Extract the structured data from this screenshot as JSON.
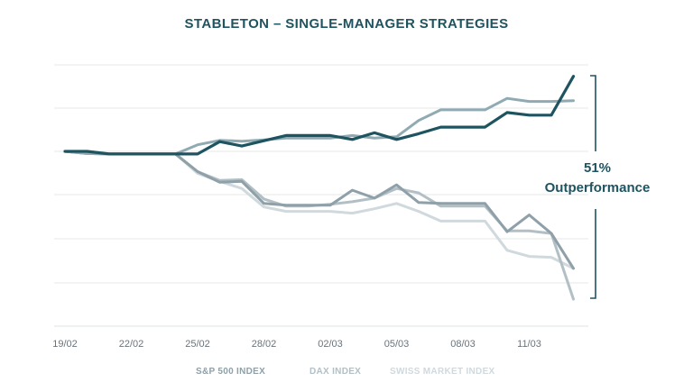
{
  "chart_data": {
    "type": "line",
    "title": "STABLETON – SINGLE-MANAGER STRATEGIES",
    "xlabel": "",
    "ylabel": "",
    "x_tick_labels": [
      "19/02",
      "22/02",
      "25/02",
      "28/02",
      "02/03",
      "05/03",
      "08/03",
      "11/03"
    ],
    "x": [
      0,
      1,
      2,
      3,
      4,
      5,
      6,
      7,
      8,
      9,
      10,
      11,
      12,
      13,
      14,
      15,
      16,
      17,
      18,
      19,
      20,
      21,
      22,
      23
    ],
    "grid": true,
    "annotation": "51%\nOutperformance",
    "legend_position": "bottom",
    "series": [
      {
        "name": "STABLETON",
        "color": "#1e5360",
        "values": [
          0,
          0,
          -0.6,
          -0.6,
          -0.6,
          -0.6,
          -0.6,
          2.2,
          1.2,
          2.4,
          3.6,
          3.6,
          3.6,
          2.7,
          4.2,
          2.7,
          4.0,
          5.5,
          5.5,
          5.5,
          8.8,
          8.2,
          8.2,
          17.0
        ]
      },
      {
        "name": "",
        "color": "#8faab3",
        "values": [
          0,
          -0.5,
          -0.6,
          -0.6,
          -0.6,
          -0.6,
          1.5,
          2.5,
          2.3,
          2.6,
          3.0,
          3.0,
          3.0,
          3.6,
          3.0,
          3.3,
          7.0,
          9.4,
          9.4,
          9.4,
          12.0,
          11.3,
          11.3,
          11.5
        ]
      },
      {
        "name": "S&P 500 INDEX",
        "color": "#8fa0a8",
        "values": [
          0,
          -0.5,
          -0.6,
          -0.6,
          -0.6,
          -0.6,
          -4.6,
          -7.0,
          -6.8,
          -11.8,
          -12.2,
          -12.2,
          -12.2,
          -8.8,
          -10.6,
          -7.6,
          -11.6,
          -11.8,
          -11.8,
          -11.8,
          -18.2,
          -14.4,
          -18.6,
          -26.5
        ]
      },
      {
        "name": "DAX INDEX",
        "color": "#b2bfc5",
        "values": [
          0,
          -0.5,
          -0.6,
          -0.6,
          -0.6,
          -0.6,
          -4.6,
          -6.6,
          -6.4,
          -10.8,
          -12.4,
          -12.4,
          -12.0,
          -11.4,
          -10.6,
          -8.4,
          -9.4,
          -12.4,
          -12.4,
          -12.4,
          -18.0,
          -18.0,
          -18.6,
          -33.5
        ]
      },
      {
        "name": "SWISS MARKET INDEX",
        "color": "#d0d9dd",
        "values": [
          0,
          -0.5,
          -0.6,
          -0.6,
          -0.6,
          -0.6,
          -5.0,
          -6.8,
          -8.4,
          -12.6,
          -13.6,
          -13.6,
          -13.6,
          -14.0,
          -13.0,
          -11.8,
          -13.6,
          -15.8,
          -15.8,
          -15.8,
          -22.4,
          -23.8,
          -24.0,
          -26.5
        ]
      }
    ]
  }
}
